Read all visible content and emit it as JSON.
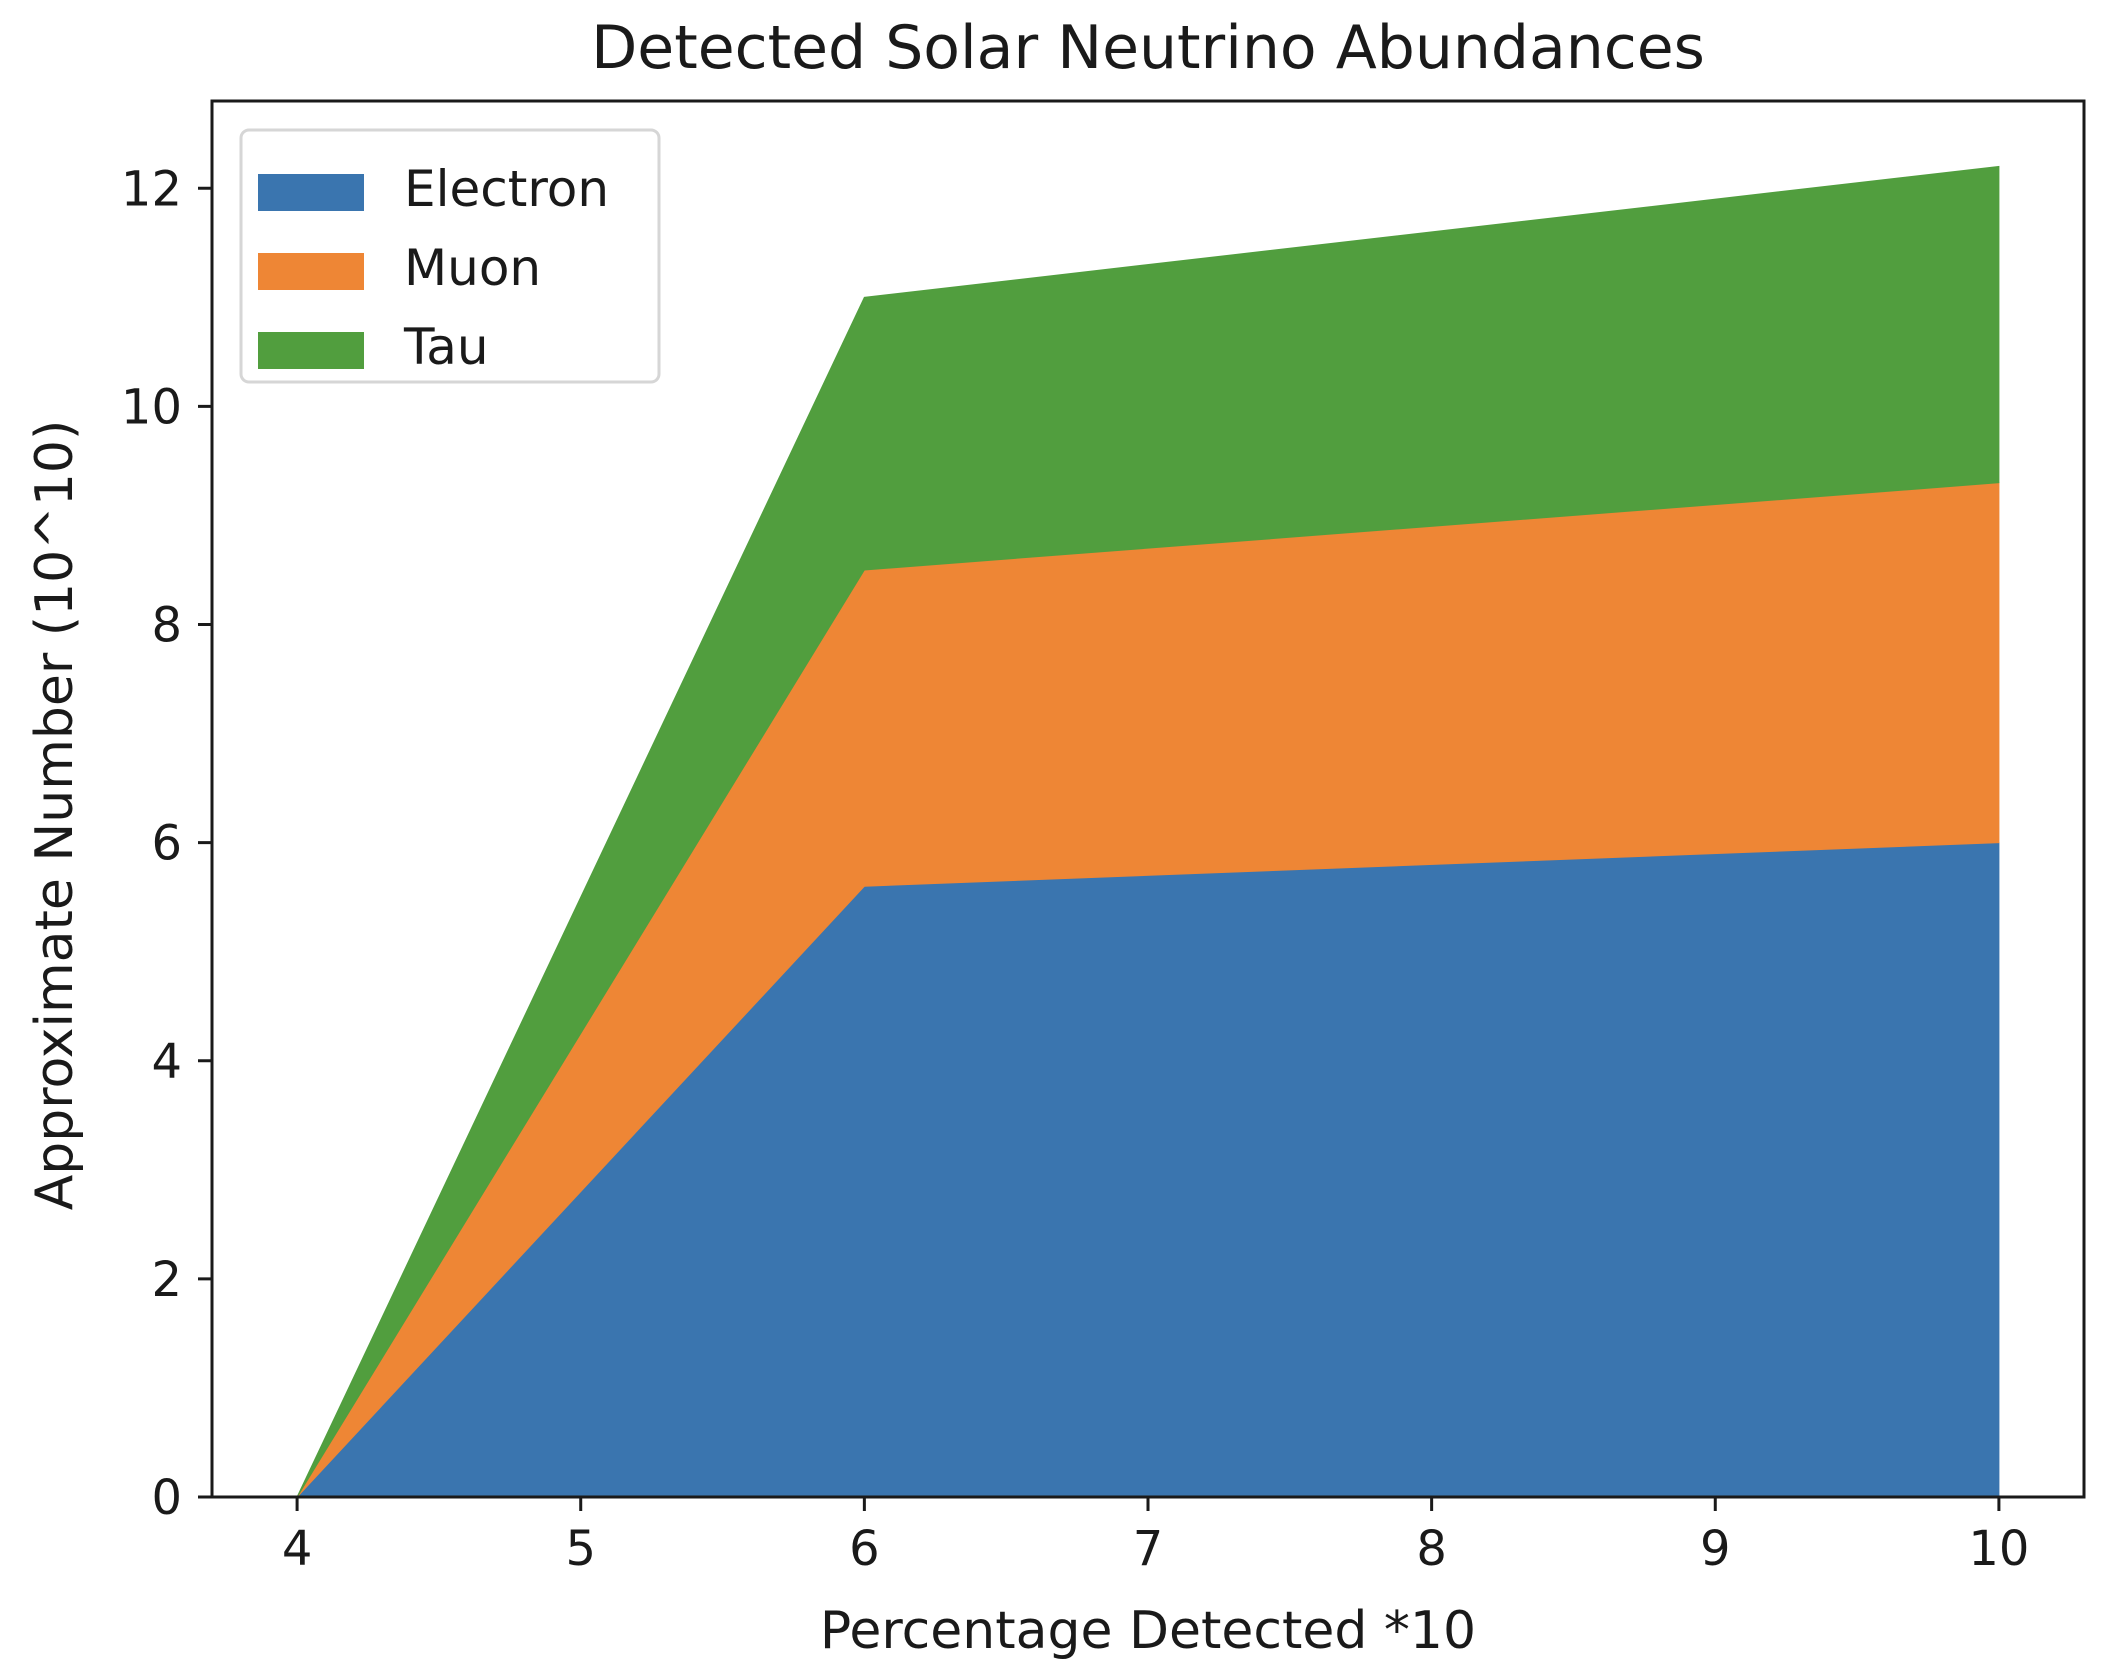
{
  "chart_data": {
    "type": "area",
    "stacked": true,
    "title": "Detected Solar Neutrino Abundances",
    "xlabel": "Percentage Detected *10",
    "ylabel": "Approximate Number (10^10)",
    "x": [
      4,
      6,
      10
    ],
    "xlim": [
      3.7,
      10.3
    ],
    "ylim": [
      0,
      12.8
    ],
    "xticks": [
      4,
      5,
      6,
      7,
      8,
      9,
      10
    ],
    "yticks": [
      0,
      2,
      4,
      6,
      8,
      10,
      12
    ],
    "grid": false,
    "legend_position": "upper-left",
    "series": [
      {
        "name": "Electron",
        "values": [
          0,
          5.6,
          6.0
        ],
        "color": "#3a75af"
      },
      {
        "name": "Muon",
        "values": [
          0,
          2.9,
          3.3
        ],
        "color": "#ee8635"
      },
      {
        "name": "Tau",
        "values": [
          0,
          2.5,
          2.9
        ],
        "color": "#519e3e"
      }
    ]
  }
}
